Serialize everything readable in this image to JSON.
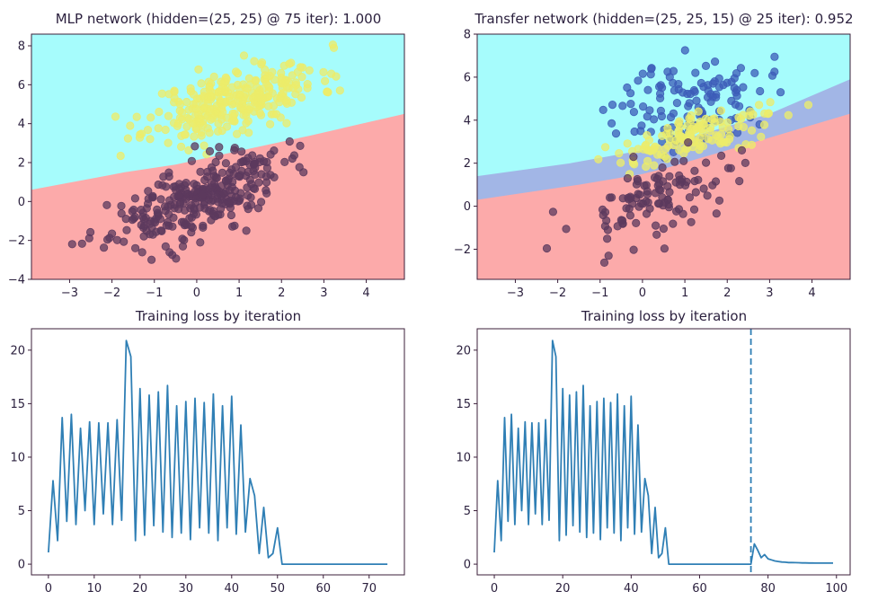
{
  "chart_data": [
    {
      "type": "scatter",
      "title": "MLP network (hidden=(25, 25) @ 75 iter): 1.000",
      "xlim": [
        -3.9,
        4.9
      ],
      "ylim": [
        -4,
        8.6
      ],
      "xticks": [
        -3,
        -2,
        -1,
        0,
        1,
        2,
        3,
        4
      ],
      "yticks": [
        -4,
        -2,
        0,
        2,
        4,
        6,
        8
      ],
      "regions": [
        {
          "name": "class 0 region",
          "color": "#a6fcfc"
        },
        {
          "name": "class 1 region",
          "color": "#fcaaaa"
        }
      ],
      "boundary": [
        [
          -3.9,
          0.6
        ],
        [
          -1.7,
          1.5
        ],
        [
          -0.5,
          1.9
        ],
        [
          1.0,
          2.6
        ],
        [
          2.7,
          3.4
        ],
        [
          4.9,
          4.5
        ]
      ],
      "series": [
        {
          "color": "#ecec6a",
          "center": [
            0.9,
            5.2
          ],
          "spread": [
            1.0,
            0.8
          ],
          "slope": 0.55,
          "count": 300,
          "seed": 11
        },
        {
          "color": "#5c3a5e",
          "center": [
            0.0,
            0.1
          ],
          "spread": [
            1.0,
            0.9
          ],
          "slope": 0.75,
          "count": 300,
          "seed": 23
        }
      ]
    },
    {
      "type": "scatter",
      "title": "Transfer network (hidden=(25, 25, 15) @ 25 iter): 0.952",
      "xlim": [
        -3.9,
        4.9
      ],
      "ylim": [
        -3.4,
        8.0
      ],
      "xticks": [
        -3,
        -2,
        -1,
        0,
        1,
        2,
        3,
        4
      ],
      "yticks": [
        -2,
        0,
        2,
        4,
        6,
        8
      ],
      "regions": [
        {
          "name": "class 0 region",
          "color": "#a6fcfc"
        },
        {
          "name": "class 2 region",
          "color": "#a2b6e6"
        },
        {
          "name": "class 1 region",
          "color": "#fcaaaa"
        }
      ],
      "boundary_upper": [
        [
          -3.9,
          1.4
        ],
        [
          -1.7,
          2.0
        ],
        [
          0.0,
          2.6
        ],
        [
          1.3,
          3.3
        ],
        [
          3.0,
          4.3
        ],
        [
          4.9,
          5.9
        ]
      ],
      "boundary_lower": [
        [
          -3.9,
          0.3
        ],
        [
          -1.5,
          1.0
        ],
        [
          0.0,
          1.5
        ],
        [
          0.6,
          1.8
        ],
        [
          2.0,
          2.6
        ],
        [
          4.9,
          4.3
        ]
      ],
      "series": [
        {
          "color": "#3c5cb8",
          "center": [
            1.2,
            4.9
          ],
          "spread": [
            0.9,
            1.0
          ],
          "slope": 0.4,
          "count": 120,
          "seed": 37
        },
        {
          "color": "#ecec6a",
          "center": [
            1.3,
            3.3
          ],
          "spread": [
            1.0,
            0.45
          ],
          "slope": 0.55,
          "count": 130,
          "seed": 41
        },
        {
          "color": "#5c3a5e",
          "center": [
            0.4,
            0.5
          ],
          "spread": [
            1.0,
            0.9
          ],
          "slope": 0.75,
          "count": 110,
          "seed": 53
        }
      ]
    },
    {
      "type": "line",
      "title": "Training loss by iteration",
      "xlim": [
        -3.7,
        77.7
      ],
      "ylim": [
        -1.0,
        22.0
      ],
      "xticks": [
        0,
        10,
        20,
        30,
        40,
        50,
        60,
        70
      ],
      "yticks": [
        0,
        5,
        10,
        15,
        20
      ],
      "color": "#2f7fb5",
      "y": [
        1.1,
        7.8,
        2.2,
        13.7,
        4.0,
        14.0,
        3.7,
        12.7,
        5.0,
        13.3,
        3.7,
        13.2,
        4.7,
        13.2,
        3.7,
        13.5,
        4.1,
        20.9,
        19.4,
        2.2,
        16.4,
        2.7,
        15.8,
        3.6,
        16.1,
        3.0,
        16.7,
        2.5,
        14.8,
        2.9,
        15.2,
        2.3,
        15.5,
        3.4,
        15.1,
        2.9,
        15.9,
        2.2,
        14.8,
        3.4,
        15.7,
        2.8,
        13.0,
        3.0,
        8.0,
        6.4,
        1.0,
        5.3,
        0.6,
        1.0,
        3.4,
        0.0,
        0.0,
        0.0,
        0.0,
        0.0,
        0.0,
        0.0,
        0.0,
        0.0,
        0.0,
        0.0,
        0.0,
        0.0,
        0.0,
        0.0,
        0.0,
        0.0,
        0.0,
        0.0,
        0.0,
        0.0,
        0.0,
        0.0,
        0.0
      ]
    },
    {
      "type": "line",
      "title": "Training loss by iteration",
      "xlim": [
        -5.0,
        104.0
      ],
      "ylim": [
        -1.0,
        22.0
      ],
      "xticks": [
        0,
        20,
        40,
        60,
        80,
        100
      ],
      "yticks": [
        0,
        5,
        10,
        15,
        20
      ],
      "color": "#2f7fb5",
      "vline": 75,
      "y_extra": [
        0.0,
        1.9,
        1.3,
        0.6,
        0.9,
        0.5,
        0.4,
        0.3,
        0.25,
        0.2,
        0.18,
        0.15,
        0.15,
        0.14,
        0.13,
        0.12,
        0.12,
        0.11,
        0.11,
        0.1,
        0.1,
        0.1,
        0.1,
        0.1,
        0.1
      ]
    }
  ]
}
